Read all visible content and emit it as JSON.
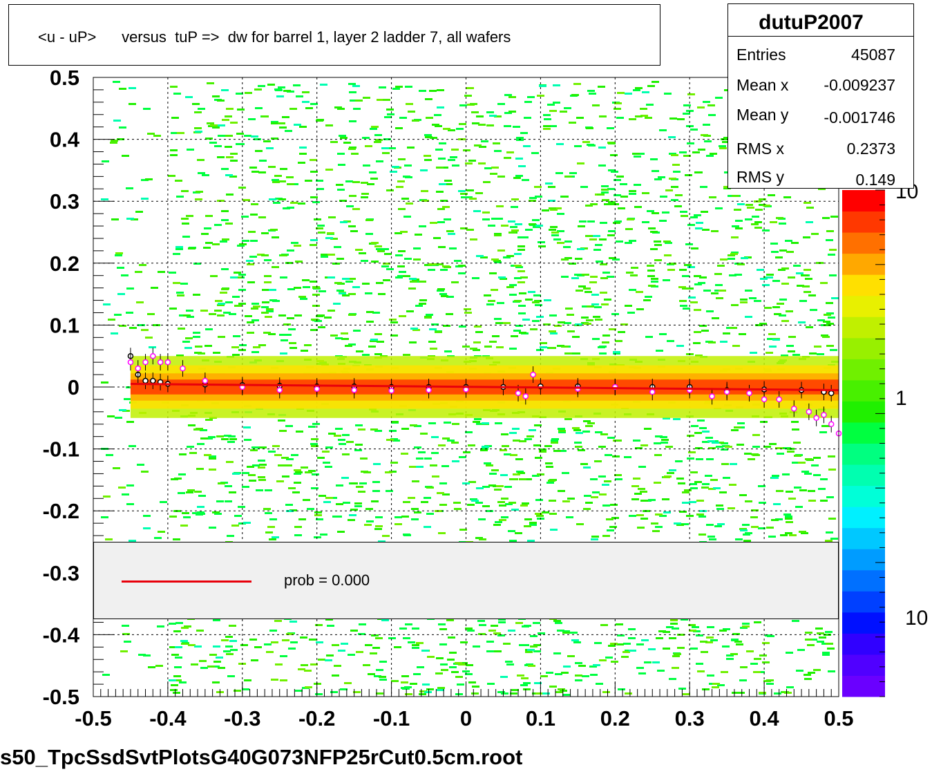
{
  "title": "<u - uP>      versus  tuP =>  dw for barrel 1, layer 2 ladder 7, all wafers",
  "stats": {
    "name": "dutuP2007",
    "rows": [
      {
        "label": "Entries",
        "value": "45087"
      },
      {
        "label": "Mean x",
        "value": "-0.009237"
      },
      {
        "label": "Mean y",
        "value": "-0.001746"
      },
      {
        "label": "RMS x",
        "value": "0.2373"
      },
      {
        "label": "RMS y",
        "value": "0.149"
      }
    ]
  },
  "legend": {
    "text": "prob = 0.000",
    "line_color": "#e8000b"
  },
  "filename": "s50_TpcSsdSvtPlotsG40G073NFP25rCut0.5cm.root",
  "chart_data": {
    "type": "heatmap",
    "xlim": [
      -0.5,
      0.5
    ],
    "ylim": [
      -0.5,
      0.5
    ],
    "x_ticks": [
      "-0.5",
      "-0.4",
      "-0.3",
      "-0.2",
      "-0.1",
      "0",
      "0.1",
      "0.2",
      "0.3",
      "0.4",
      "0.5"
    ],
    "y_ticks": [
      "-0.5",
      "-0.4",
      "-0.3",
      "-0.2",
      "-0.1",
      "0",
      "0.1",
      "0.2",
      "0.3",
      "0.4",
      "0.5"
    ],
    "grid": true,
    "z_scale": "log",
    "colorbar_labels": [
      "1",
      "10",
      "10"
    ],
    "colorbar_colors": [
      "#6a00ff",
      "#5000ff",
      "#3000ff",
      "#0010ff",
      "#0040ff",
      "#0070ff",
      "#009cff",
      "#00c8ff",
      "#00f0ff",
      "#00ffd8",
      "#00ffb0",
      "#00ff80",
      "#00ff40",
      "#20f000",
      "#48f000",
      "#70f000",
      "#98f000",
      "#c0f000",
      "#e8f000",
      "#ffe000",
      "#ffa800",
      "#ff7000",
      "#ff3800",
      "#ff0000"
    ],
    "band": {
      "x_range": [
        -0.45,
        0.5
      ],
      "y_center": 0.0,
      "y_spread": 0.05
    },
    "profile_series": [
      {
        "name": "black profile",
        "x": [
          -0.45,
          -0.44,
          -0.43,
          -0.42,
          -0.41,
          -0.4,
          -0.35,
          -0.3,
          -0.25,
          -0.2,
          -0.15,
          -0.1,
          -0.05,
          0.0,
          0.05,
          0.1,
          0.15,
          0.2,
          0.25,
          0.3,
          0.35,
          0.4,
          0.45,
          0.48,
          0.49
        ],
        "y": [
          0.05,
          0.02,
          0.01,
          0.01,
          0.008,
          0.005,
          0.004,
          0.003,
          0.002,
          0.001,
          0.001,
          0.0,
          0.0,
          0.0,
          0.0,
          0.001,
          0.001,
          0.0,
          0.0,
          0.0,
          -0.005,
          -0.004,
          -0.005,
          -0.008,
          -0.01
        ]
      },
      {
        "name": "magenta profile",
        "x": [
          -0.45,
          -0.44,
          -0.43,
          -0.42,
          -0.41,
          -0.4,
          -0.38,
          -0.35,
          -0.3,
          -0.25,
          -0.2,
          -0.15,
          -0.1,
          -0.05,
          0.0,
          0.07,
          0.08,
          0.09,
          0.15,
          0.2,
          0.25,
          0.3,
          0.33,
          0.35,
          0.38,
          0.4,
          0.42,
          0.44,
          0.46,
          0.47,
          0.48,
          0.49,
          0.5
        ],
        "y": [
          0.04,
          0.03,
          0.04,
          0.05,
          0.04,
          0.04,
          0.03,
          0.01,
          0.0,
          -0.005,
          -0.003,
          -0.005,
          -0.006,
          -0.005,
          -0.004,
          -0.01,
          -0.015,
          0.02,
          -0.003,
          0.0,
          -0.008,
          -0.005,
          -0.015,
          -0.008,
          -0.01,
          -0.02,
          -0.02,
          -0.035,
          -0.04,
          -0.05,
          -0.045,
          -0.06,
          -0.075
        ]
      }
    ],
    "fit_line": {
      "x": [
        -0.45,
        0.5
      ],
      "y": [
        0.005,
        -0.005
      ]
    }
  }
}
